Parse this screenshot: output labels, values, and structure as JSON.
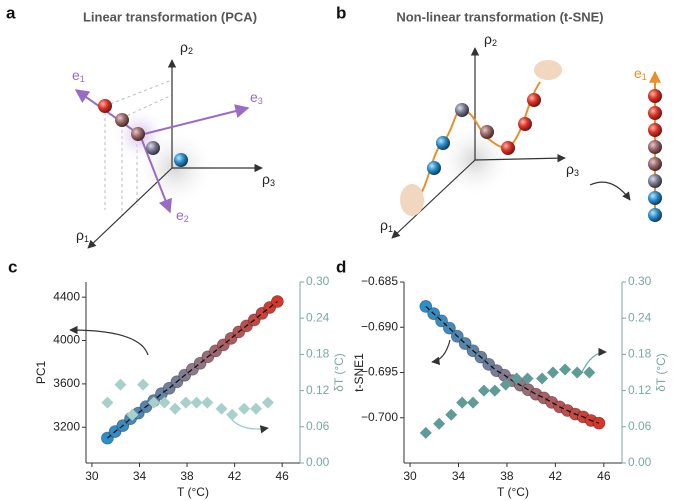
{
  "diagrams": {
    "a": {
      "label": "a",
      "title": "Linear transformation (PCA)",
      "axes": [
        {
          "symbol": "ρ",
          "sub": "1"
        },
        {
          "symbol": "ρ",
          "sub": "2"
        },
        {
          "symbol": "ρ",
          "sub": "3"
        }
      ],
      "vectors": [
        {
          "symbol": "e",
          "sub": "1"
        },
        {
          "symbol": "e",
          "sub": "2"
        },
        {
          "symbol": "e",
          "sub": "3"
        }
      ]
    },
    "b": {
      "label": "b",
      "title": "Non-linear transformation (t-SNE)",
      "axes": [
        {
          "symbol": "ρ",
          "sub": "1"
        },
        {
          "symbol": "ρ",
          "sub": "2"
        },
        {
          "symbol": "ρ",
          "sub": "3"
        }
      ],
      "vectors": [
        {
          "symbol": "e",
          "sub": "1"
        }
      ]
    }
  },
  "chart_data": [
    {
      "type": "scatter",
      "panel_label": "c",
      "x_label": "T (°C)",
      "y_label": "PC1",
      "y2_label": "δT (°C)",
      "xlim": [
        29.5,
        47.5
      ],
      "xticks": [
        30,
        34,
        38,
        42,
        46
      ],
      "ylim": [
        2870,
        4540
      ],
      "yticks": [
        3200,
        3600,
        4000,
        4400
      ],
      "y2lim": [
        0,
        0.3
      ],
      "y2ticks": [
        {
          "value": 0,
          "label": "0.00"
        },
        {
          "value": 0.06,
          "label": "0.06"
        },
        {
          "value": 0.12,
          "label": "0.12"
        },
        {
          "value": 0.18,
          "label": "0.18"
        },
        {
          "value": 0.24,
          "label": "0.24"
        },
        {
          "value": 0.3,
          "label": "0.30"
        }
      ],
      "series": [
        {
          "color_scale": [
            "#2a8fcb",
            "#8c7a8a",
            "#d8362a"
          ],
          "line": "dashed",
          "x": [
            31.3,
            31.95,
            32.6,
            33.25,
            33.9,
            34.55,
            35.2,
            35.85,
            36.5,
            37.15,
            37.8,
            38.45,
            39.1,
            39.75,
            40.4,
            41.05,
            41.7,
            42.35,
            43.0,
            43.65,
            44.3,
            44.95,
            45.6
          ],
          "values": [
            3100,
            3160,
            3215,
            3280,
            3330,
            3390,
            3445,
            3510,
            3560,
            3620,
            3680,
            3735,
            3790,
            3850,
            3905,
            3960,
            4020,
            4080,
            4135,
            4190,
            4250,
            4305,
            4360
          ]
        },
        {
          "axis": "y2",
          "color": "#a8d0ca",
          "marker": "diamond",
          "x": [
            31.3,
            32.4,
            33.4,
            34.3,
            35.2,
            36.1,
            37.0,
            37.9,
            38.8,
            39.7,
            40.9,
            41.8,
            42.8,
            43.8,
            44.8
          ],
          "values": [
            0.1,
            0.13,
            0.08,
            0.13,
            0.1,
            0.1,
            0.09,
            0.1,
            0.1,
            0.1,
            0.09,
            0.08,
            0.09,
            0.09,
            0.1
          ]
        }
      ]
    },
    {
      "type": "scatter",
      "panel_label": "d",
      "x_label": "T (°C)",
      "y_label": "t-SNE1",
      "y2_label": "δT (°C)",
      "xlim": [
        29.5,
        47.5
      ],
      "xticks": [
        30,
        34,
        38,
        42,
        46
      ],
      "ylim": [
        -0.705,
        -0.685
      ],
      "yticks": [
        {
          "value": -0.685,
          "label": "−0.685"
        },
        {
          "value": -0.69,
          "label": "−0.690"
        },
        {
          "value": -0.695,
          "label": "−0.695"
        },
        {
          "value": -0.7,
          "label": "−0.700"
        }
      ],
      "y2lim": [
        0,
        0.3
      ],
      "y2ticks": [
        {
          "value": 0,
          "label": "0.00"
        },
        {
          "value": 0.06,
          "label": "0.06"
        },
        {
          "value": 0.12,
          "label": "0.12"
        },
        {
          "value": 0.18,
          "label": "0.18"
        },
        {
          "value": 0.24,
          "label": "0.24"
        },
        {
          "value": 0.3,
          "label": "0.30"
        }
      ],
      "series": [
        {
          "color_scale": [
            "#2a8fcb",
            "#8c7a8a",
            "#d8362a"
          ],
          "line": "dashed",
          "x": [
            31.3,
            31.95,
            32.6,
            33.25,
            33.9,
            34.55,
            35.2,
            35.85,
            36.5,
            37.15,
            37.8,
            38.45,
            39.1,
            39.75,
            40.4,
            41.05,
            41.7,
            42.35,
            43.0,
            43.65,
            44.3,
            44.95,
            45.6
          ],
          "values": [
            -0.6877,
            -0.6885,
            -0.6893,
            -0.6901,
            -0.691,
            -0.6918,
            -0.6926,
            -0.6933,
            -0.6941,
            -0.6948,
            -0.6953,
            -0.6959,
            -0.6964,
            -0.6969,
            -0.6974,
            -0.6978,
            -0.6983,
            -0.6988,
            -0.6992,
            -0.6996,
            -0.6999,
            -0.7003,
            -0.7006
          ]
        },
        {
          "axis": "y2",
          "color": "#5f9b97",
          "marker": "diamond",
          "x": [
            31.3,
            32.4,
            33.4,
            34.3,
            35.2,
            36.1,
            37.0,
            37.9,
            38.8,
            39.7,
            40.9,
            41.8,
            42.8,
            43.8,
            44.8
          ],
          "values": [
            0.05,
            0.065,
            0.08,
            0.1,
            0.1,
            0.12,
            0.12,
            0.13,
            0.14,
            0.14,
            0.14,
            0.15,
            0.155,
            0.15,
            0.15
          ]
        }
      ]
    }
  ]
}
